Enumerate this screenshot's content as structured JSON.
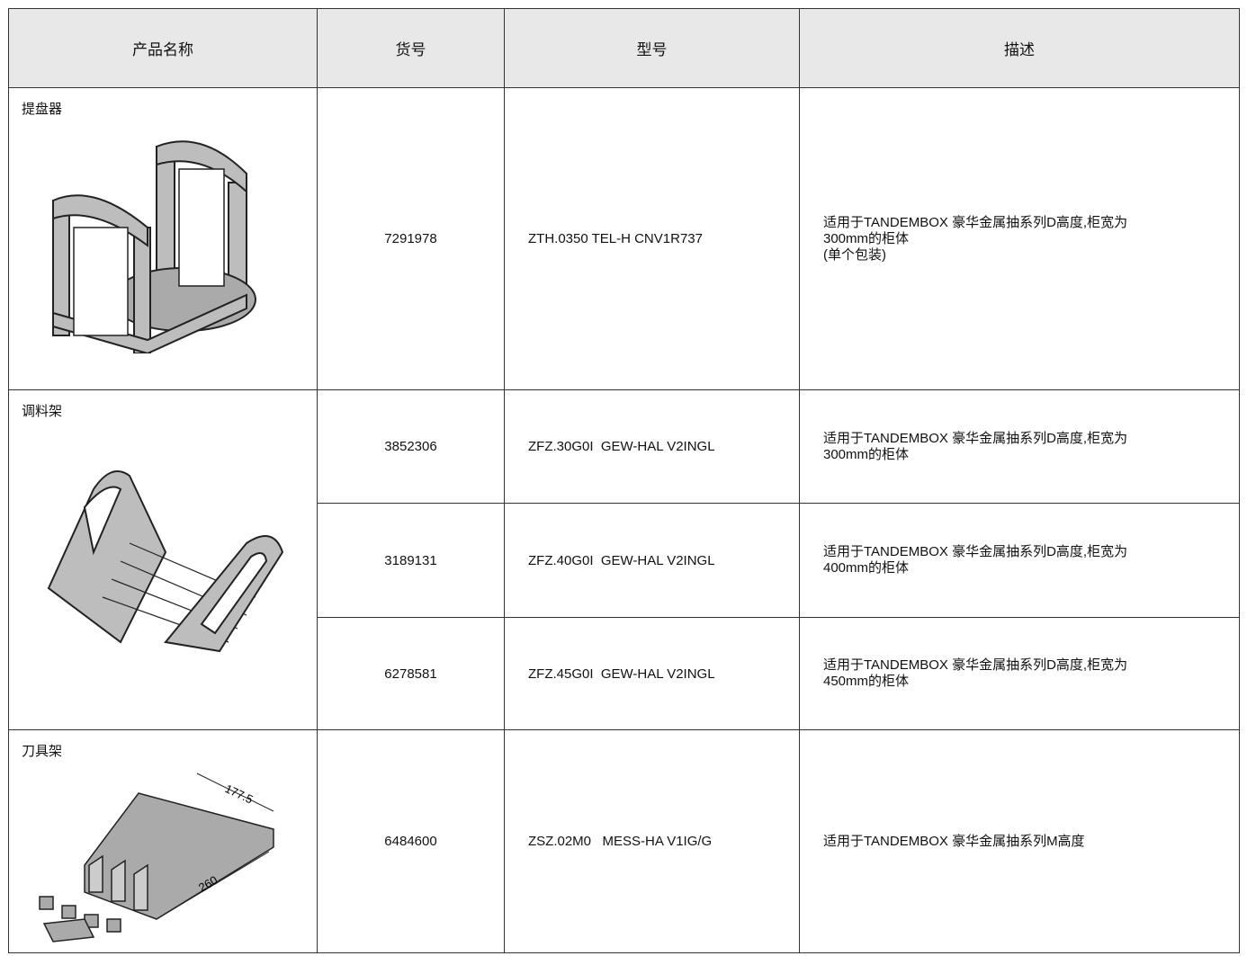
{
  "table": {
    "headers": [
      "产品名称",
      "货号",
      "型号",
      "描述"
    ],
    "groups": [
      {
        "name": "提盘器",
        "items": [
          {
            "article": "7291978",
            "model": "ZTH.0350 TEL-H CNV1R737",
            "description": [
              "适用于TANDEMBOX 豪华金属抽系列D高度,柜宽为",
              "300mm的柜体",
              "(单个包装)"
            ]
          }
        ]
      },
      {
        "name": "调料架",
        "items": [
          {
            "article": "3852306",
            "model": "ZFZ.30G0I  GEW-HAL V2INGL",
            "description": [
              "适用于TANDEMBOX 豪华金属抽系列D高度,柜宽为",
              "300mm的柜体"
            ]
          },
          {
            "article": "3189131",
            "model": "ZFZ.40G0I  GEW-HAL V2INGL",
            "description": [
              "适用于TANDEMBOX 豪华金属抽系列D高度,柜宽为",
              "400mm的柜体"
            ]
          },
          {
            "article": "6278581",
            "model": "ZFZ.45G0I  GEW-HAL V2INGL",
            "description": [
              "适用于TANDEMBOX 豪华金属抽系列D高度,柜宽为",
              "450mm的柜体"
            ]
          }
        ]
      },
      {
        "name": "刀具架",
        "dimensions": [
          "177.5",
          "260"
        ],
        "items": [
          {
            "article": "6484600",
            "model": "ZSZ.02M0   MESS-HA V1IG/G",
            "description": [
              "适用于TANDEMBOX 豪华金属抽系列M高度"
            ]
          }
        ]
      }
    ]
  }
}
